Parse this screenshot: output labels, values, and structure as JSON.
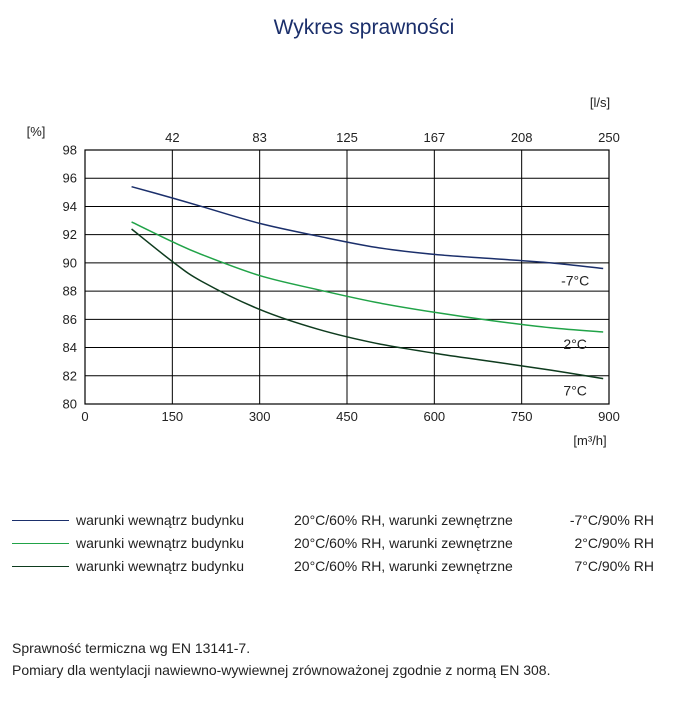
{
  "title": "Wykres sprawności",
  "chart_data": {
    "type": "line",
    "y_unit_label": "[%]",
    "x_unit_label": "[m³/h]",
    "x2_unit_label": "[l/s]",
    "x_ticks": [
      "0",
      "150",
      "300",
      "450",
      "600",
      "750",
      "900"
    ],
    "x2_ticks": [
      "42",
      "83",
      "125",
      "167",
      "208",
      "250"
    ],
    "y_ticks": [
      "80",
      "82",
      "84",
      "86",
      "88",
      "90",
      "92",
      "94",
      "96",
      "98"
    ],
    "xlim": [
      0,
      900
    ],
    "ylim": [
      80,
      98
    ],
    "grid": true,
    "series": [
      {
        "label": "-7°C",
        "color": "#1b2f6b",
        "x": [
          80,
          150,
          200,
          300,
          400,
          500,
          600,
          700,
          800,
          890
        ],
        "y": [
          95.4,
          94.6,
          94.0,
          92.8,
          91.9,
          91.1,
          90.6,
          90.3,
          90.0,
          89.6
        ]
      },
      {
        "label": "2°C",
        "color": "#21a348",
        "x": [
          80,
          150,
          200,
          300,
          400,
          500,
          600,
          700,
          800,
          890
        ],
        "y": [
          92.9,
          91.5,
          90.6,
          89.1,
          88.1,
          87.2,
          86.5,
          85.9,
          85.4,
          85.1
        ]
      },
      {
        "label": "7°C",
        "color": "#0e3b1e",
        "x": [
          80,
          150,
          200,
          300,
          400,
          500,
          600,
          700,
          800,
          890
        ],
        "y": [
          92.4,
          90.1,
          88.7,
          86.7,
          85.3,
          84.3,
          83.6,
          83.0,
          82.4,
          81.8
        ]
      }
    ]
  },
  "legend": [
    {
      "color": "#1b2f6b",
      "condition": "warunki wewnątrz budynku",
      "inner": "20°C/60% RH, warunki zewnętrzne",
      "outer": "-7°C/90% RH"
    },
    {
      "color": "#21a348",
      "condition": "warunki wewnątrz budynku",
      "inner": "20°C/60% RH, warunki zewnętrzne",
      "outer": "2°C/90% RH"
    },
    {
      "color": "#0e3b1e",
      "condition": "warunki wewnątrz budynku",
      "inner": "20°C/60% RH, warunki zewnętrzne",
      "outer": "7°C/90% RH"
    }
  ],
  "notes": [
    "Sprawność termiczna wg EN 13141-7.",
    "Pomiary dla wentylacji nawiewno-wywiewnej zrównoważonej zgodnie z normą EN 308."
  ]
}
